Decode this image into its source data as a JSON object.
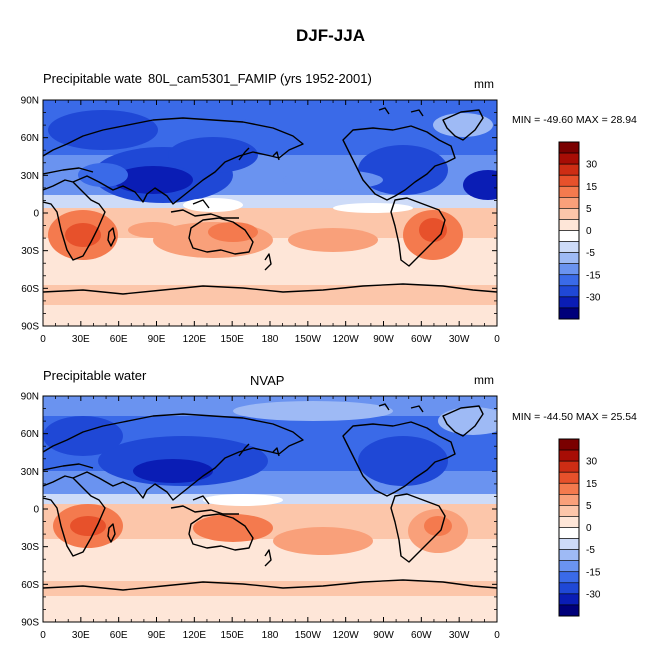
{
  "figure_title": "DJF-JJA",
  "color_palette": [
    "#00007a",
    "#0a1db5",
    "#1f48d6",
    "#3a6ae8",
    "#6a93f0",
    "#9ebaf5",
    "#cddbf8",
    "#ffffff",
    "#fee6d8",
    "#fcc6aa",
    "#f9a07a",
    "#f47a4e",
    "#e7512b",
    "#cd2d14",
    "#a70d05",
    "#7a0000"
  ],
  "colorbar_labels": [
    "30",
    "15",
    "5",
    "0",
    "-5",
    "-15",
    "-30"
  ],
  "x_tick_labels": [
    "0",
    "30E",
    "60E",
    "90E",
    "120E",
    "150E",
    "180",
    "150W",
    "120W",
    "90W",
    "60W",
    "30W",
    "0"
  ],
  "y_tick_labels": [
    "90N",
    "60N",
    "30N",
    "0",
    "30S",
    "60S",
    "90S"
  ],
  "panels": [
    {
      "left_title": "Precipitable wate",
      "center_title": "80L_cam5301_FAMIP (yrs 1952-2001)",
      "units": "mm",
      "min_max": "MIN = -49.60 MAX =  28.94"
    },
    {
      "left_title": "Precipitable water",
      "center_title": "NVAP",
      "units": "mm",
      "min_max": "MIN = -44.50 MAX =  25.54"
    }
  ]
}
